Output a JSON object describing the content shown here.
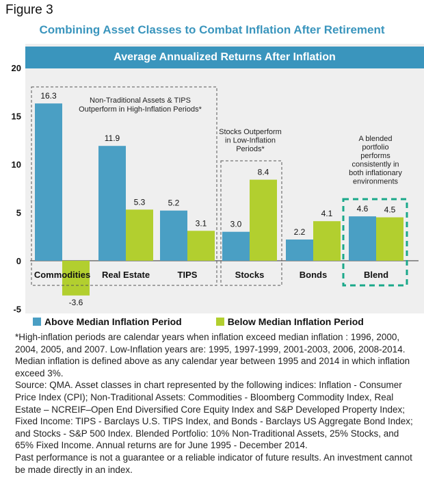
{
  "figure_label": "Figure 3",
  "title": "Combining Asset Classes to Combat Inflation After Retirement",
  "chart_data": {
    "type": "bar",
    "subtitle": "Average Annualized  Returns After Inflation",
    "categories": [
      "Commodities",
      "Real Estate",
      "TIPS",
      "Stocks",
      "Bonds",
      "Blend"
    ],
    "series": [
      {
        "name": "Above Median Inflation Period",
        "values": [
          16.3,
          11.9,
          5.2,
          3.0,
          2.2,
          4.6
        ],
        "color": "#4a9fc4"
      },
      {
        "name": "Below Median Inflation Period",
        "values": [
          -3.6,
          5.3,
          3.1,
          8.4,
          4.1,
          4.5
        ],
        "color": "#b2cf2f"
      }
    ],
    "value_labels": [
      [
        "16.3",
        "11.9",
        "5.2",
        "3.0",
        "2.2",
        "4.6"
      ],
      [
        "-3.6",
        "5.3",
        "3.1",
        "8.4",
        "4.1",
        "4.5"
      ]
    ],
    "ylim": [
      -5,
      20
    ],
    "yticks": [
      "20",
      "15",
      "10",
      "5",
      "0",
      "-5"
    ],
    "grid": false,
    "legend_position": "bottom",
    "annotations": {
      "nontraditional": [
        "Non-Traditional Assets & TIPS",
        "Outperform in High-Inflation Periods*"
      ],
      "stocks": [
        "Stocks Outperform",
        "in Low-Inflation",
        "Periods*"
      ],
      "blend": [
        "A blended",
        "portfolio",
        "performs",
        "consistently in",
        "both inflationary",
        "environments"
      ]
    },
    "accent_color": "#3a95bd",
    "highlight_color": "#1aa88a"
  },
  "notes": [
    "*High-inflation periods are calendar years when inflation exceed median inflation : 1996, 2000, 2004, 2005, and 2007. Low-Inflation years are: 1995, 1997-1999, 2001-2003, 2006, 2008-2014. Median inflation is defined above as any calendar year between 1995 and 2014 in which inflation exceed 3%.",
    "Source: QMA. Asset classes in chart represented by the following indices: Inflation - Consumer Price Index (CPI); Non-Traditional Assets: Commodities - Bloomberg Commodity Index, Real Estate – NCREIF–Open End Diversified Core Equity Index and S&P Developed Property Index; Fixed Income: TIPS - Barclays U.S. TIPS Index, and Bonds - Barclays US Aggregate Bond Index; and Stocks - S&P 500 Index. Blended Portfolio: 10% Non-Traditional Assets, 25% Stocks, and 65% Fixed Income. Annual returns are for June 1995 - December 2014.",
    "Past performance is not a guarantee or a reliable indicator of future results. An investment cannot be made directly in an index."
  ]
}
